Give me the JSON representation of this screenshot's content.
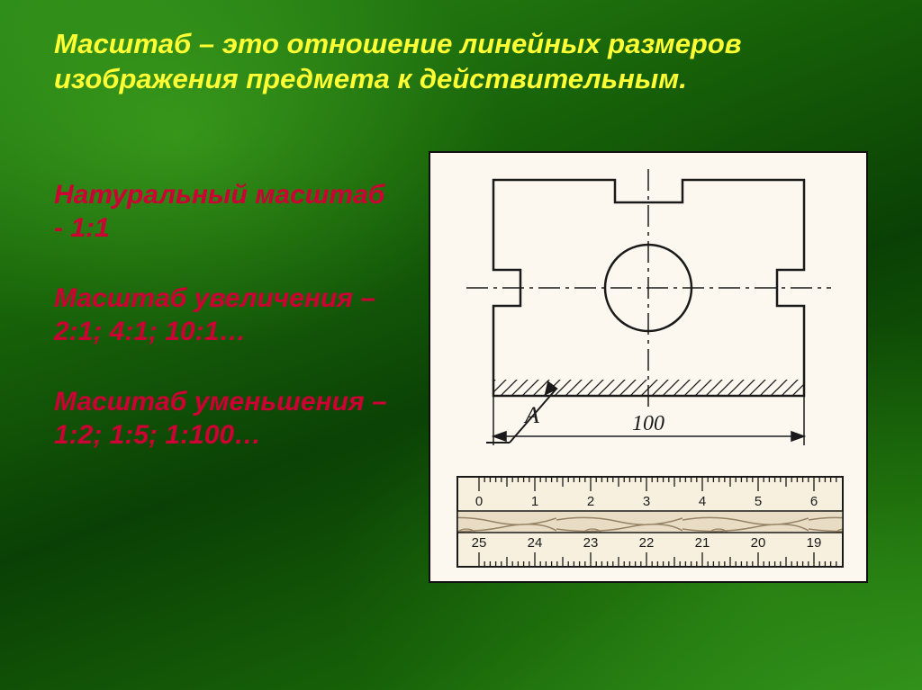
{
  "slide": {
    "definition": "Масштаб – это отношение линейных размеров изображения предмета к действительным.",
    "scales": {
      "natural": {
        "title": "Натуральный масштаб - 1:1"
      },
      "enlarge": {
        "title": "Масштаб увеличения –",
        "values": " 2:1;  4:1; 10:1…"
      },
      "reduce": {
        "title": "Масштаб уменьшения –",
        "values": "1:2;  1:5;  1:100…"
      }
    },
    "figure": {
      "dimension_value": "100",
      "leader_label": "A",
      "ruler_top": [
        "0",
        "1",
        "2",
        "3",
        "4",
        "5",
        "6"
      ],
      "ruler_bottom": [
        "25",
        "24",
        "23",
        "22",
        "21",
        "20",
        "19"
      ],
      "colors": {
        "paper": "#fcf8f0",
        "ink": "#1a1a1a",
        "wood_light": "#e8dcc4",
        "wood_dark": "#968265"
      }
    }
  }
}
